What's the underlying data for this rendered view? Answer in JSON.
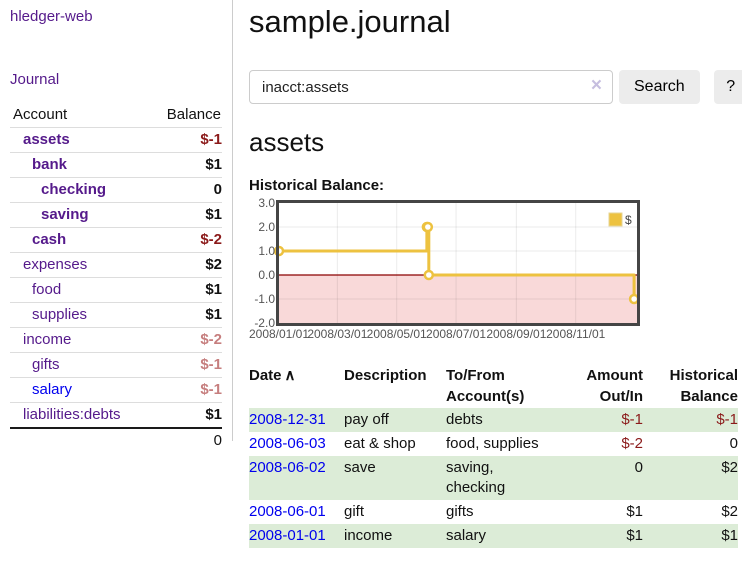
{
  "app_title": "hledger-web",
  "sidebar": {
    "journal_link": "Journal",
    "accounts": {
      "col_account": "Account",
      "col_balance": "Balance",
      "rows": [
        {
          "name": "assets",
          "balance": "$-1",
          "level": 1,
          "bold": true,
          "balance_style": "neg-strong"
        },
        {
          "name": "bank",
          "balance": "$1",
          "level": 2,
          "bold": true,
          "balance_style": "pos"
        },
        {
          "name": "checking",
          "balance": "0",
          "level": 3,
          "bold": true,
          "balance_style": "pos"
        },
        {
          "name": "saving",
          "balance": "$1",
          "level": 3,
          "bold": true,
          "balance_style": "pos"
        },
        {
          "name": "cash",
          "balance": "$-2",
          "level": 2,
          "bold": true,
          "balance_style": "neg-strong"
        },
        {
          "name": "expenses",
          "balance": "$2",
          "level": 1,
          "bold": false,
          "balance_style": "pos"
        },
        {
          "name": "food",
          "balance": "$1",
          "level": 2,
          "bold": false,
          "balance_style": "pos"
        },
        {
          "name": "supplies",
          "balance": "$1",
          "level": 2,
          "bold": false,
          "balance_style": "pos"
        },
        {
          "name": "income",
          "balance": "$-2",
          "level": 1,
          "bold": false,
          "balance_style": "neg-soft"
        },
        {
          "name": "gifts",
          "balance": "$-1",
          "level": 2,
          "bold": false,
          "balance_style": "neg-soft"
        },
        {
          "name": "salary",
          "balance": "$-1",
          "level": 2,
          "bold": false,
          "balance_style": "neg-soft",
          "link_color": "blue"
        },
        {
          "name": "liabilities:debts",
          "balance": "$1",
          "level": 1,
          "bold": false,
          "balance_style": "pos"
        }
      ],
      "total": "0"
    }
  },
  "header": {
    "title": "sample.journal"
  },
  "search": {
    "value": "inacct:assets",
    "clear_icon": "×",
    "search_button": "Search",
    "help_button": "?"
  },
  "account_page": {
    "heading": "assets",
    "chart_title": "Historical Balance:"
  },
  "chart_data": {
    "type": "line",
    "title": "Historical Balance:",
    "step": true,
    "series": [
      {
        "name": "$",
        "color": "#edc240",
        "points": [
          [
            "2008-01-01",
            1
          ],
          [
            "2008-06-01",
            2
          ],
          [
            "2008-06-02",
            2
          ],
          [
            "2008-06-03",
            0
          ],
          [
            "2008-12-31",
            -1
          ]
        ]
      }
    ],
    "ylim": [
      -2,
      3
    ],
    "y_ticks": [
      {
        "label": "3.0",
        "value": 3
      },
      {
        "label": "2.0",
        "value": 2
      },
      {
        "label": "1.0",
        "value": 1
      },
      {
        "label": "0.0",
        "value": 0
      },
      {
        "label": "-1.0",
        "value": -1
      },
      {
        "label": "-2.0",
        "value": -2
      }
    ],
    "x_ticks": [
      {
        "label": "2008/01/01",
        "day": 0
      },
      {
        "label": "2008/03/01",
        "day": 60
      },
      {
        "label": "2008/05/01",
        "day": 121
      },
      {
        "label": "2008/07/01",
        "day": 182
      },
      {
        "label": "2008/09/01",
        "day": 244
      },
      {
        "label": "2008/11/01",
        "day": 305
      }
    ],
    "xlim_days": [
      0,
      368
    ],
    "grid": true,
    "legend": {
      "label": "$",
      "position": "top-right"
    },
    "colors": {
      "line": "#edc240",
      "marker_fill": "#ffffff",
      "negative_region_fill": "#f9d9d9",
      "zero_line": "#8b0000",
      "border": "#454545",
      "grid_line": "rgba(0,0,0,0.08)",
      "tick_text": "#555555"
    }
  },
  "register": {
    "sort_icon": "∧",
    "headers": {
      "date": "Date",
      "description": "Description",
      "accounts": "To/From Account(s)",
      "amount": "Amount Out/In",
      "balance": "Historical Balance"
    },
    "rows": [
      {
        "date": "2008-12-31",
        "description": "pay off",
        "accounts": "debts",
        "amount": "$-1",
        "amount_neg": true,
        "balance": "$-1",
        "balance_neg": true
      },
      {
        "date": "2008-06-03",
        "description": "eat & shop",
        "accounts": "food, supplies",
        "amount": "$-2",
        "amount_neg": true,
        "balance": "0",
        "balance_neg": false
      },
      {
        "date": "2008-06-02",
        "description": "save",
        "accounts": "saving, checking",
        "amount": "0",
        "amount_neg": false,
        "balance": "$2",
        "balance_neg": false
      },
      {
        "date": "2008-06-01",
        "description": "gift",
        "accounts": "gifts",
        "amount": "$1",
        "amount_neg": false,
        "balance": "$2",
        "balance_neg": false
      },
      {
        "date": "2008-01-01",
        "description": "income",
        "accounts": "salary",
        "amount": "$1",
        "amount_neg": false,
        "balance": "$1",
        "balance_neg": false
      }
    ]
  },
  "ui_colors": {
    "link_purple": "#551a8b",
    "link_blue": "#0000ee",
    "negative_strong": "#8b1a1a",
    "negative_soft": "#c67e7e",
    "row_stripe_green": "#dcecd7",
    "button_bg": "#ececec"
  }
}
